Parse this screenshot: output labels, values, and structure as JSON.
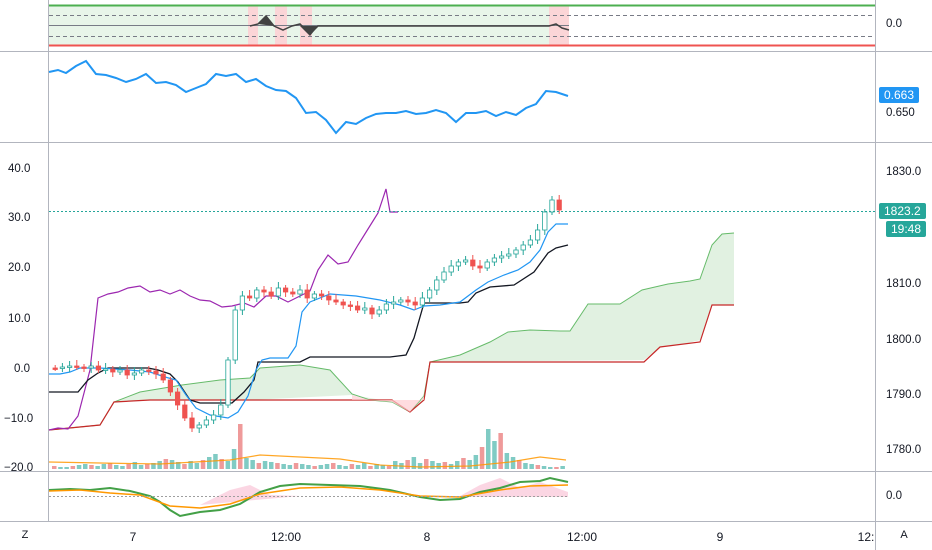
{
  "panes": {
    "top": {
      "right_label": "0.0"
    },
    "blue": {
      "labels": [
        "0.663",
        "0.650"
      ],
      "line_color": "#2196f3",
      "tag_color": "#2196f3"
    },
    "main": {
      "left_axis": [
        "40.0",
        "30.0",
        "20.0",
        "10.0",
        "0.0",
        "−10.0",
        "−20.0"
      ],
      "right_axis": [
        "1830.0",
        "1810.0",
        "1800.0",
        "1790.0",
        "1780.0"
      ],
      "last_price": "1823.2",
      "countdown": "19:48",
      "tag_color": "#26a69a"
    },
    "bottom": {
      "right_label": "0.0"
    }
  },
  "time_axis": {
    "labels": [
      "7",
      "12:00",
      "8",
      "12:00",
      "9",
      "12:"
    ]
  },
  "buttons": {
    "timezone": "Z",
    "auto": "A"
  },
  "colors": {
    "up": "#26a69a",
    "down": "#ef5350",
    "purple": "#9c27b0",
    "kumo_green": "#4caf50",
    "kumo_red": "#c62828"
  }
}
